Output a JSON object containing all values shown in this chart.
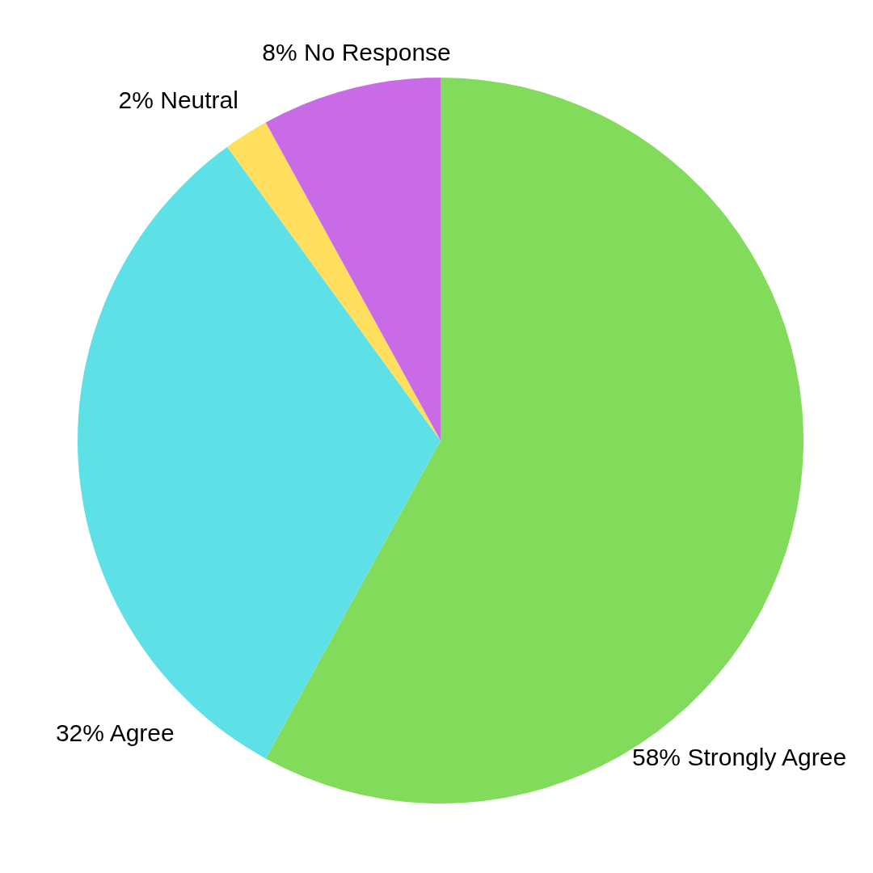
{
  "chart_data": {
    "type": "pie",
    "categories": [
      "Strongly Agree",
      "Agree",
      "Neutral",
      "No Response"
    ],
    "values": [
      58,
      32,
      2,
      8
    ],
    "value_labels": [
      "58%",
      "32%",
      "2%",
      "8%"
    ],
    "colors": [
      "#82db5a",
      "#5de1e6",
      "#ffdf5d",
      "#c96be6"
    ],
    "legend": false
  }
}
